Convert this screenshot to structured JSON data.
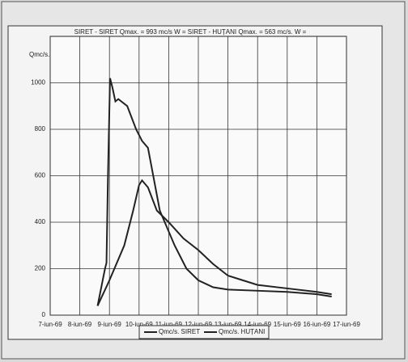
{
  "chart_data": {
    "type": "line",
    "title": "SIRET - SIRET Qmax. = 993 mc/s W =     SIRET - HUȚANI Qmax. = 563 mc/s. W =",
    "y_label": "Qmc/s.",
    "xlim": [
      7,
      17
    ],
    "xticks": [
      {
        "value": 7,
        "label": "7-iun-69"
      },
      {
        "value": 8,
        "label": "8-iun-69"
      },
      {
        "value": 9,
        "label": "9-iun-69"
      },
      {
        "value": 10,
        "label": "10-iun-69"
      },
      {
        "value": 11,
        "label": "11-iun-69"
      },
      {
        "value": 12,
        "label": "12-iun-69"
      },
      {
        "value": 13,
        "label": "13-iun-69"
      },
      {
        "value": 14,
        "label": "14-iun-69"
      },
      {
        "value": 15,
        "label": "15-iun-69"
      },
      {
        "value": 16,
        "label": "16-iun-69"
      },
      {
        "value": 17,
        "label": "17-iun-69"
      }
    ],
    "ylim": [
      0,
      1200
    ],
    "yticks": [
      0,
      200,
      400,
      600,
      800,
      1000
    ],
    "grid": true,
    "series": [
      {
        "name": "Qmc/s. SIRET",
        "color": "#222222",
        "x": [
          8.6,
          8.85,
          8.9,
          8.95,
          9.02,
          9.1,
          9.2,
          9.3,
          9.6,
          9.9,
          10.1,
          10.3,
          10.7,
          11.2,
          11.6,
          12.0,
          12.5,
          13.0,
          14.0,
          15.0,
          16.0,
          16.5
        ],
        "values": [
          40,
          200,
          225,
          600,
          1020,
          980,
          920,
          930,
          900,
          800,
          750,
          720,
          450,
          300,
          200,
          150,
          120,
          110,
          105,
          100,
          90,
          80
        ]
      },
      {
        "name": "Qmc/s. HUȚANI",
        "color": "#222222",
        "x": [
          8.6,
          9.0,
          9.5,
          9.8,
          10.0,
          10.1,
          10.3,
          10.6,
          11.0,
          11.5,
          12.0,
          12.5,
          13.0,
          13.5,
          14.0,
          15.0,
          16.0,
          16.5
        ],
        "values": [
          40,
          150,
          300,
          450,
          560,
          580,
          550,
          450,
          400,
          330,
          280,
          220,
          170,
          150,
          130,
          115,
          100,
          90
        ]
      }
    ]
  }
}
